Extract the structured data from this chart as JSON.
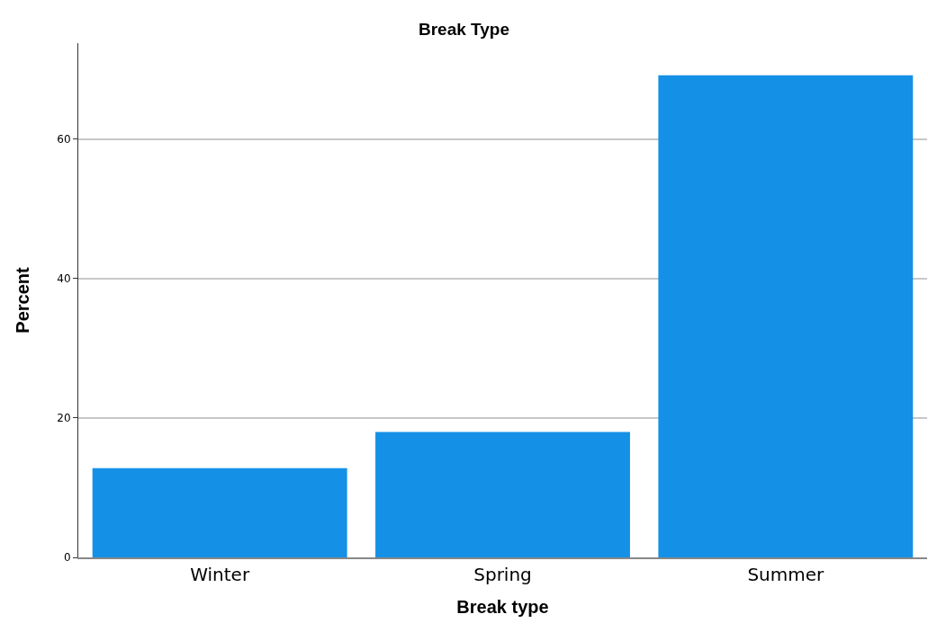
{
  "chart_data": {
    "type": "bar",
    "title": "Break Type",
    "xlabel": "Break type",
    "ylabel": "Percent",
    "categories": [
      "Winter",
      "Spring",
      "Summer"
    ],
    "values": [
      12.8,
      18.0,
      69.2
    ],
    "color": "#1490e6",
    "ylim": [
      0,
      73.8
    ],
    "yticks": [
      0,
      20,
      40,
      60
    ],
    "grid": "y"
  }
}
